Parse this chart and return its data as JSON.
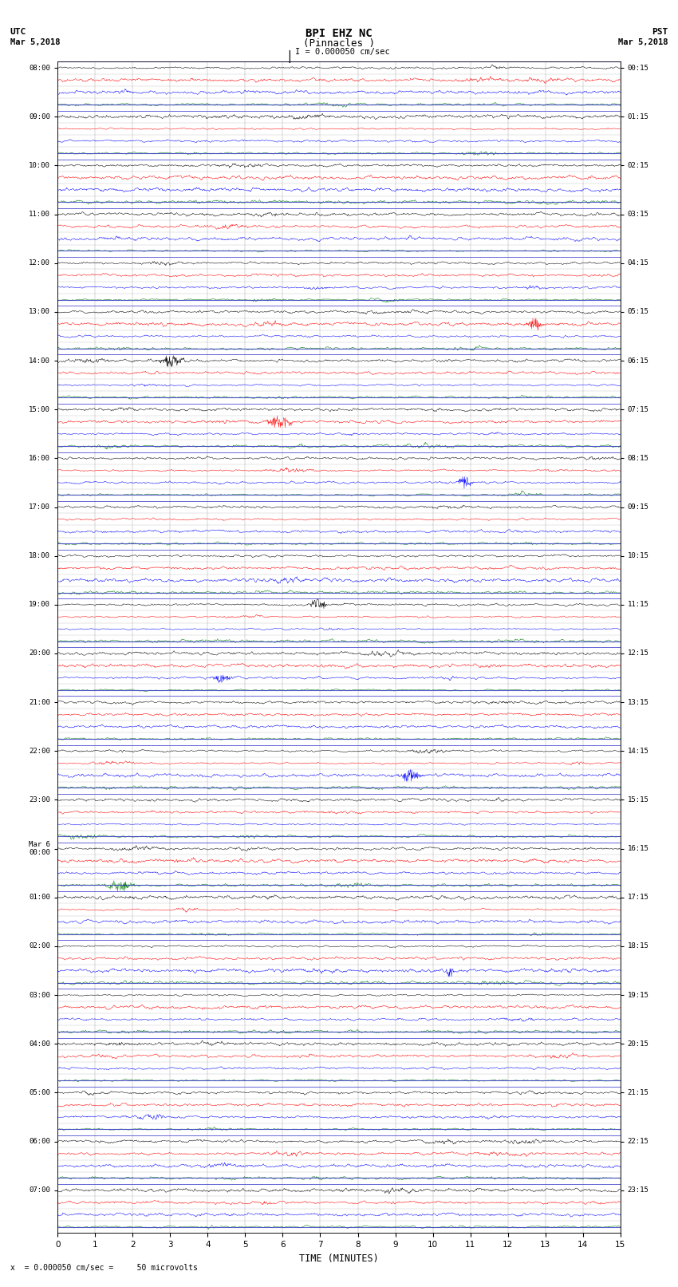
{
  "title_main": "BPI EHZ NC",
  "title_sub": "(Pinnacles )",
  "scale_label": "I = 0.000050 cm/sec",
  "xlabel": "TIME (MINUTES)",
  "footnote": "x  = 0.000050 cm/sec =     50 microvolts",
  "utc_labels": [
    "08:00",
    "09:00",
    "10:00",
    "11:00",
    "12:00",
    "13:00",
    "14:00",
    "15:00",
    "16:00",
    "17:00",
    "18:00",
    "19:00",
    "20:00",
    "21:00",
    "22:00",
    "23:00",
    "Mar 6\n00:00",
    "01:00",
    "02:00",
    "03:00",
    "04:00",
    "05:00",
    "06:00",
    "07:00"
  ],
  "pst_labels": [
    "00:15",
    "01:15",
    "02:15",
    "03:15",
    "04:15",
    "05:15",
    "06:15",
    "07:15",
    "08:15",
    "09:15",
    "10:15",
    "11:15",
    "12:15",
    "13:15",
    "14:15",
    "15:15",
    "16:15",
    "17:15",
    "18:15",
    "19:15",
    "20:15",
    "21:15",
    "22:15",
    "23:15"
  ],
  "n_hours": 24,
  "rows_per_hour": 4,
  "n_cols": 15,
  "row_colors": [
    "black",
    "red",
    "blue",
    "green"
  ],
  "background_color": "#ffffff",
  "grid_color": "#999999",
  "hour_line_color": "#3333cc",
  "fig_width": 8.5,
  "fig_height": 16.13,
  "dpi": 100,
  "xlim": [
    0,
    15
  ],
  "xticks": [
    0,
    1,
    2,
    3,
    4,
    5,
    6,
    7,
    8,
    9,
    10,
    11,
    12,
    13,
    14,
    15
  ],
  "seed": 12345
}
